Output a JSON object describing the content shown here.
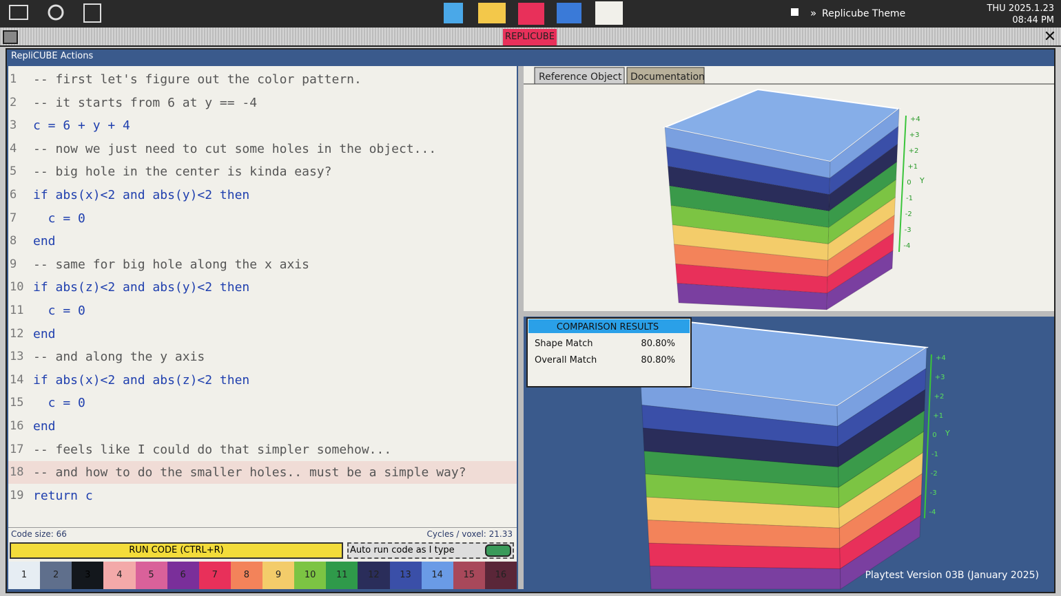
{
  "top_bar": {
    "theme": "Replicube Theme",
    "date": "THU 2025.1.23",
    "time": "08:44 PM"
  },
  "window": {
    "tab": "REPLICUBE",
    "title": "RepliCUBE Actions"
  },
  "editor": {
    "lines": [
      {
        "number": "1",
        "code": "-- first let's figure out the color pattern."
      },
      {
        "number": "2",
        "code": "-- it starts from 6 at y == -4"
      },
      {
        "number": "3",
        "code": "c = 6 + y + 4"
      },
      {
        "number": "4",
        "code": "-- now we just need to cut some holes in the object..."
      },
      {
        "number": "5",
        "code": "-- big hole in the center is kinda easy?"
      },
      {
        "number": "6",
        "code": "if abs(x)<2 and abs(y)<2 then"
      },
      {
        "number": "7",
        "code": "  c = 0"
      },
      {
        "number": "8",
        "code": "end"
      },
      {
        "number": "9",
        "code": "-- same for big hole along the x axis"
      },
      {
        "number": "10",
        "code": "if abs(z)<2 and abs(y)<2 then"
      },
      {
        "number": "11",
        "code": "  c = 0"
      },
      {
        "number": "12",
        "code": "end"
      },
      {
        "number": "13",
        "code": "-- and along the y axis"
      },
      {
        "number": "14",
        "code": "if abs(x)<2 and abs(z)<2 then"
      },
      {
        "number": "15",
        "code": "  c = 0"
      },
      {
        "number": "16",
        "code": "end"
      },
      {
        "number": "17",
        "code": "-- feels like I could do that simpler somehow..."
      },
      {
        "number": "18",
        "code": "-- and how to do the smaller holes.. must be a simple way?"
      },
      {
        "number": "19",
        "code": "return c"
      }
    ],
    "code_size": "Code size: 66",
    "cycles": "Cycles / voxel: 21.33",
    "run_button": "RUN CODE (CTRL+R)",
    "auto_run": "Auto run code as I type"
  },
  "palette": [
    {
      "label": "1",
      "color": "#e6edf3"
    },
    {
      "label": "2",
      "color": "#5f6f8c"
    },
    {
      "label": "3",
      "color": "#13171c"
    },
    {
      "label": "4",
      "color": "#f3a9a9"
    },
    {
      "label": "5",
      "color": "#d9619a"
    },
    {
      "label": "6",
      "color": "#7a2f9a"
    },
    {
      "label": "7",
      "color": "#e8305a"
    },
    {
      "label": "8",
      "color": "#f3835a"
    },
    {
      "label": "9",
      "color": "#f3cc6a"
    },
    {
      "label": "10",
      "color": "#7cc443"
    },
    {
      "label": "11",
      "color": "#2f9a4a"
    },
    {
      "label": "12",
      "color": "#2a2d5a"
    },
    {
      "label": "13",
      "color": "#3a4fa8"
    },
    {
      "label": "14",
      "color": "#6a9be6"
    },
    {
      "label": "15",
      "color": "#a8485a"
    },
    {
      "label": "16",
      "color": "#5a2638"
    }
  ],
  "viewer": {
    "tabs": [
      "Reference Object",
      "Documentation"
    ],
    "y_axis_labels": [
      "+4",
      "+3",
      "+2",
      "+1",
      "0",
      "-1",
      "-2",
      "-3",
      "-4"
    ],
    "y_axis_name": "Y",
    "comparison": {
      "title": "COMPARISON RESULTS",
      "rows": [
        [
          "Shape Match",
          "80.80%"
        ],
        [
          "Overall Match",
          "80.80%"
        ]
      ]
    },
    "version": "Playtest Version 03B (January 2025)"
  }
}
